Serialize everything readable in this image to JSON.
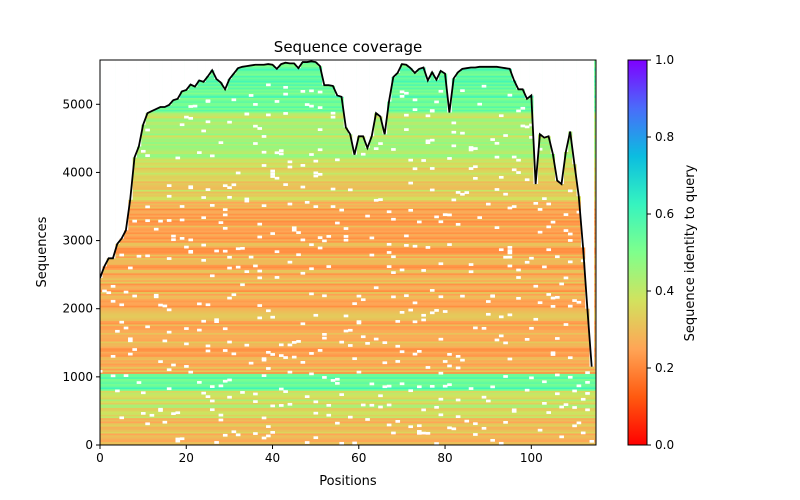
{
  "chart_data": {
    "type": "heatmap",
    "title": "Sequence coverage",
    "xlabel": "Positions",
    "ylabel": "Sequences",
    "xlim": [
      0,
      115
    ],
    "ylim": [
      0,
      5650
    ],
    "x_ticks": [
      0,
      20,
      40,
      60,
      80,
      100
    ],
    "y_ticks": [
      0,
      1000,
      2000,
      3000,
      4000,
      5000
    ],
    "colorbar": {
      "label": "Sequence identity to query",
      "range": [
        0.0,
        1.0
      ],
      "ticks": [
        "0.0",
        "0.2",
        "0.4",
        "0.6",
        "0.8",
        "1.0"
      ],
      "colormap": "rainbow"
    },
    "heatmap_bands": [
      {
        "from": 0,
        "to": 400,
        "identity": 0.3
      },
      {
        "from": 400,
        "to": 800,
        "identity": 0.38
      },
      {
        "from": 800,
        "to": 1050,
        "identity": 0.55
      },
      {
        "from": 1050,
        "to": 3600,
        "identity": 0.27
      },
      {
        "from": 3600,
        "to": 4200,
        "identity": 0.35
      },
      {
        "from": 4200,
        "to": 4900,
        "identity": 0.42
      },
      {
        "from": 4900,
        "to": 5650,
        "identity": 0.55
      }
    ],
    "coverage_line": {
      "color": "#000000",
      "x": [
        0,
        1,
        2,
        3,
        4,
        5,
        6,
        7,
        8,
        9,
        10,
        11,
        12,
        13,
        14,
        15,
        16,
        17,
        18,
        19,
        20,
        21,
        22,
        23,
        24,
        25,
        26,
        27,
        28,
        29,
        30,
        31,
        32,
        33,
        34,
        35,
        36,
        37,
        38,
        39,
        40,
        41,
        42,
        43,
        44,
        45,
        46,
        47,
        48,
        49,
        50,
        51,
        52,
        53,
        54,
        55,
        56,
        57,
        58,
        59,
        60,
        61,
        62,
        63,
        64,
        65,
        66,
        67,
        68,
        69,
        70,
        71,
        72,
        73,
        74,
        75,
        76,
        77,
        78,
        79,
        80,
        81,
        82,
        83,
        84,
        85,
        86,
        87,
        88,
        89,
        90,
        91,
        92,
        93,
        94,
        95,
        96,
        97,
        98,
        99,
        100,
        101,
        102,
        103,
        104,
        105,
        106,
        107,
        108,
        109,
        110,
        111,
        112,
        113,
        114
      ],
      "y": [
        2450,
        2620,
        2740,
        2740,
        2950,
        3030,
        3150,
        3600,
        4220,
        4380,
        4700,
        4870,
        4900,
        4930,
        4960,
        4960,
        4990,
        5060,
        5080,
        5190,
        5210,
        5290,
        5260,
        5350,
        5330,
        5410,
        5500,
        5370,
        5320,
        5220,
        5370,
        5450,
        5530,
        5550,
        5560,
        5570,
        5580,
        5580,
        5580,
        5590,
        5580,
        5520,
        5590,
        5610,
        5600,
        5600,
        5530,
        5620,
        5620,
        5630,
        5620,
        5560,
        5280,
        5280,
        5270,
        5130,
        5110,
        4660,
        4560,
        4260,
        4530,
        4530,
        4360,
        4530,
        4870,
        4820,
        4560,
        5040,
        5400,
        5460,
        5590,
        5580,
        5530,
        5460,
        5520,
        5540,
        5350,
        5470,
        5360,
        5490,
        5450,
        4880,
        5380,
        5470,
        5520,
        5530,
        5540,
        5540,
        5550,
        5550,
        5550,
        5550,
        5550,
        5540,
        5530,
        5520,
        5350,
        5220,
        5220,
        5080,
        5130,
        3830,
        4560,
        4510,
        4530,
        4270,
        3880,
        3830,
        4300,
        4600,
        4120,
        3650,
        2900,
        2000,
        1150
      ]
    }
  }
}
